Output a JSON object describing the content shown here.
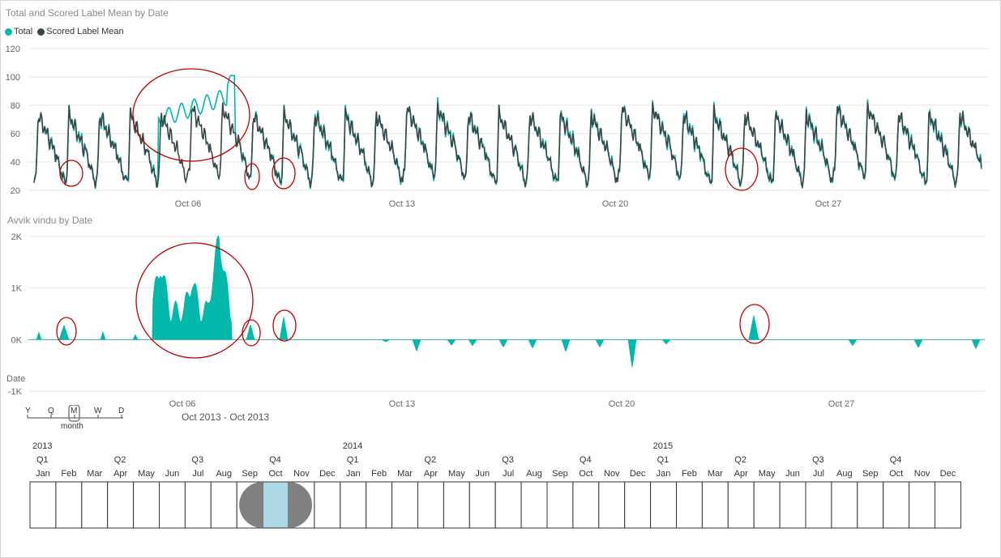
{
  "chart_data": [
    {
      "type": "line",
      "title": "Total and Scored Label Mean by Date",
      "series": [
        {
          "name": "Total",
          "color": "#01b8aa"
        },
        {
          "name": "Scored Label Mean",
          "color": "#374649"
        }
      ],
      "yticks": [
        "120",
        "100",
        "80",
        "60",
        "40",
        "20"
      ],
      "ylim": [
        20,
        120
      ],
      "xticks": [
        "Oct 06",
        "Oct 13",
        "Oct 20",
        "Oct 27"
      ],
      "grid": true,
      "legend": "top-left"
    },
    {
      "type": "area",
      "title": "Avvik vindu by Date",
      "series": [
        {
          "name": "Avvik vindu",
          "color": "#01b8aa"
        }
      ],
      "yticks": [
        "2K",
        "1K",
        "0K",
        "-1K"
      ],
      "ylim": [
        -1000,
        2000
      ],
      "xticks": [
        "Oct 06",
        "Oct 13",
        "Oct 20",
        "Oct 27"
      ],
      "grid": true
    }
  ],
  "chart2_axis_label": "Date",
  "timeline": {
    "caption": "Oct 2013 - Oct 2013",
    "levels": [
      "Y",
      "Q",
      "M",
      "W",
      "D"
    ],
    "selected_level": "M",
    "level_label": "month",
    "years": [
      "2013",
      "2014",
      "2015"
    ],
    "quarters": [
      "Q1",
      "Q2",
      "Q3",
      "Q4",
      "Q1",
      "Q2",
      "Q3",
      "Q4",
      "Q1",
      "Q2",
      "Q3",
      "Q4"
    ],
    "months": [
      "Jan",
      "Feb",
      "Mar",
      "Apr",
      "May",
      "Jun",
      "Jul",
      "Aug",
      "Sep",
      "Oct",
      "Nov",
      "Dec",
      "Jan",
      "Feb",
      "Mar",
      "Apr",
      "May",
      "Jun",
      "Jul",
      "Aug",
      "Sep",
      "Oct",
      "Nov",
      "Dec",
      "Jan",
      "Feb",
      "Mar",
      "Apr",
      "May",
      "Jun",
      "Jul",
      "Aug",
      "Sep",
      "Oct",
      "Nov",
      "Dec"
    ],
    "selected_month_index": 9
  },
  "colors": {
    "total": "#01b8aa",
    "scored": "#374649",
    "annotation": "#c00000",
    "selection": "#add8e6",
    "handle": "#808080"
  }
}
